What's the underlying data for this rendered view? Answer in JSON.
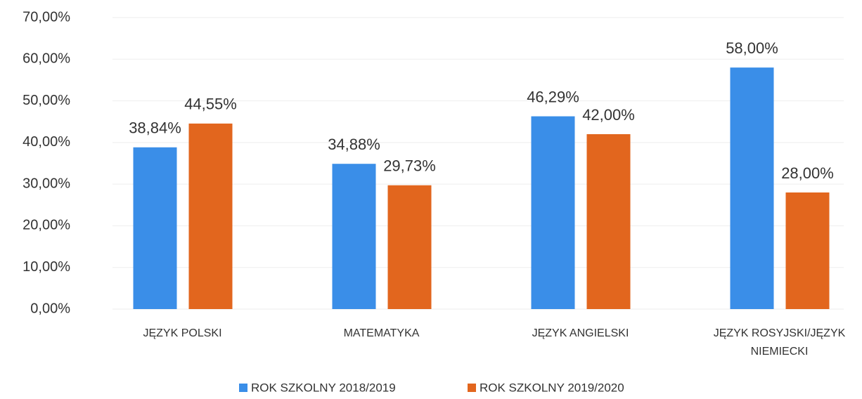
{
  "chart_data": {
    "type": "bar",
    "categories": [
      "JĘZYK POLSKI",
      "MATEMATYKA",
      "JĘZYK ANGIELSKI",
      "JĘZYK ROSYJSKI/JĘZYK NIEMIECKI"
    ],
    "series": [
      {
        "name": "ROK SZKOLNY 2018/2019",
        "color": "#3a8ee8",
        "values": [
          38.84,
          34.88,
          46.29,
          58.0
        ],
        "value_labels": [
          "38,84%",
          "34,88%",
          "46,29%",
          "58,00%"
        ]
      },
      {
        "name": "ROK SZKOLNY 2019/2020",
        "color": "#e2661e",
        "values": [
          44.55,
          29.73,
          42.0,
          28.0
        ],
        "value_labels": [
          "44,55%",
          "29,73%",
          "42,00%",
          "28,00%"
        ]
      }
    ],
    "ylim": [
      0,
      70
    ],
    "yticks": [
      {
        "value": 0,
        "label": "0,00%"
      },
      {
        "value": 10,
        "label": "10,00%"
      },
      {
        "value": 20,
        "label": "20,00%"
      },
      {
        "value": 30,
        "label": "30,00%"
      },
      {
        "value": 40,
        "label": "40,00%"
      },
      {
        "value": 50,
        "label": "50,00%"
      },
      {
        "value": 60,
        "label": "60,00%"
      },
      {
        "value": 70,
        "label": "70,00%"
      }
    ],
    "grid": true,
    "legend": "bottom"
  }
}
